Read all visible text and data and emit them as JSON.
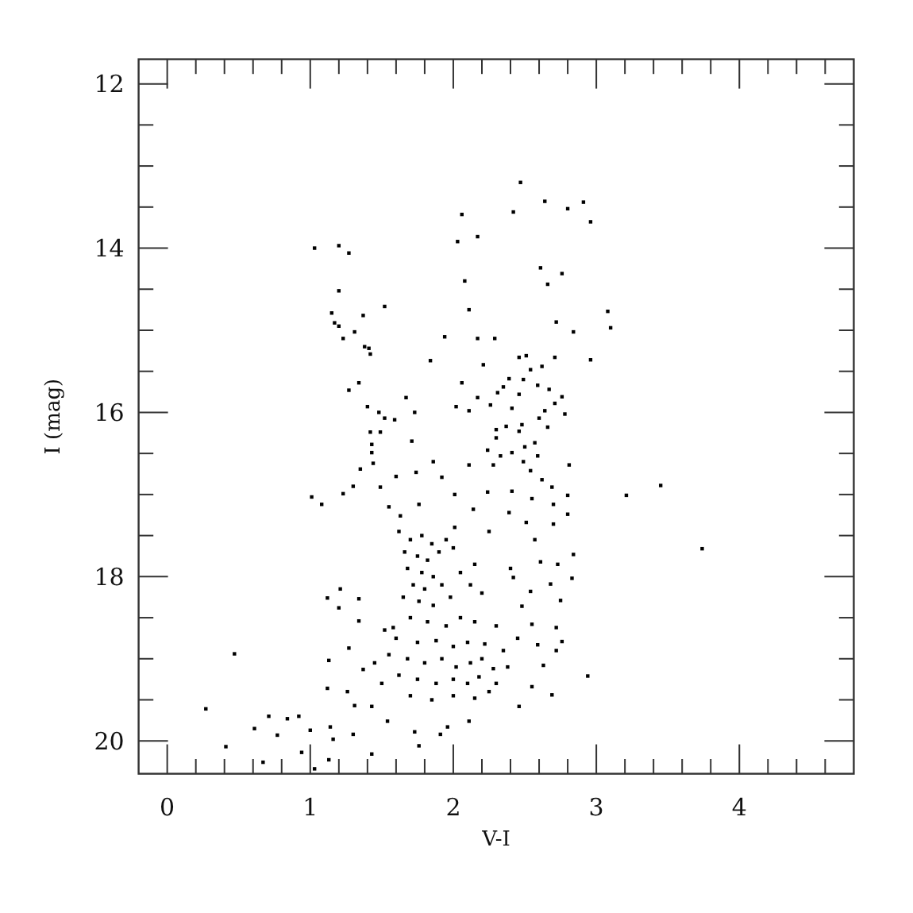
{
  "chart_data": {
    "type": "scatter",
    "xlabel": "V-I",
    "ylabel": "I (mag)",
    "x": [
      1.03,
      1.2,
      1.27,
      1.2,
      1.15,
      1.17,
      1.2,
      1.37,
      1.52,
      1.31,
      1.23,
      1.38,
      1.41,
      1.42,
      1.84,
      1.94,
      1.34,
      1.27,
      1.4,
      1.48,
      1.52,
      1.59,
      1.42,
      1.49,
      1.67,
      1.73,
      1.71,
      1.43,
      1.43,
      1.44,
      1.35,
      1.86,
      2.06,
      2.03,
      2.17,
      2.08,
      2.11,
      2.17,
      2.21,
      2.06,
      2.17,
      2.02,
      2.11,
      2.26,
      2.47,
      2.42,
      2.64,
      2.8,
      2.91,
      2.96,
      2.61,
      2.76,
      2.66,
      3.08,
      3.1,
      2.72,
      2.84,
      2.29,
      2.96,
      2.46,
      2.51,
      2.71,
      2.62,
      2.54,
      2.39,
      2.49,
      2.35,
      2.31,
      2.59,
      2.67,
      2.76,
      2.46,
      2.71,
      2.41,
      2.64,
      2.6,
      2.78,
      2.48,
      2.37,
      2.66,
      2.3,
      2.46,
      2.57,
      2.3,
      2.5,
      2.24,
      2.41,
      2.33,
      2.59,
      2.49,
      2.54,
      2.81,
      2.11,
      2.28,
      2.62,
      2.69,
      2.24,
      2.41,
      2.8,
      2.55,
      2.7,
      3.21,
      3.45,
      3.74,
      2.14,
      2.39,
      2.8,
      1.01,
      1.08,
      1.23,
      1.3,
      1.49,
      1.55,
      1.63,
      1.76,
      1.6,
      1.74,
      1.92,
      2.01,
      2.7,
      2.51,
      2.25,
      2.01,
      2.84,
      2.83,
      2.73,
      2.68,
      2.75,
      2.72,
      2.76,
      2.72,
      2.94,
      2.63,
      2.69,
      2.46,
      2.55,
      2.61,
      2.57,
      2.4,
      2.42,
      2.54,
      2.48,
      2.55,
      2.59,
      1.12,
      1.2,
      1.21,
      1.34,
      0.47,
      0.27,
      0.41,
      0.61,
      0.71,
      0.84,
      0.92,
      0.77,
      0.67,
      0.94,
      1.0,
      1.03,
      1.14,
      1.16,
      1.13,
      1.3,
      1.43,
      1.76,
      1.13,
      1.12,
      1.27,
      1.26,
      1.37,
      1.31,
      1.43,
      1.54,
      1.73,
      1.91,
      2.11,
      1.96,
      1.34,
      1.52,
      1.62,
      1.7,
      1.78,
      1.85,
      1.66,
      1.75,
      1.82,
      1.9,
      1.68,
      1.78,
      1.86,
      1.72,
      1.8,
      1.92,
      1.65,
      1.76,
      1.86,
      1.98,
      2.05,
      2.12,
      2.2,
      2.0,
      2.15,
      1.95,
      1.7,
      1.82,
      1.95,
      2.05,
      2.15,
      2.3,
      1.6,
      1.75,
      1.88,
      2.0,
      2.1,
      2.22,
      2.35,
      2.45,
      1.55,
      1.68,
      1.8,
      1.92,
      2.02,
      2.12,
      2.2,
      2.28,
      2.38,
      1.62,
      1.75,
      1.88,
      2.0,
      2.1,
      2.18,
      2.3,
      1.7,
      1.85,
      2.0,
      2.15,
      2.25,
      1.5,
      1.45,
      1.58
    ],
    "values": [
      14.0,
      13.97,
      14.06,
      14.52,
      14.79,
      14.91,
      14.95,
      14.82,
      14.71,
      15.02,
      15.1,
      15.2,
      15.22,
      15.29,
      15.37,
      15.08,
      15.64,
      15.73,
      15.93,
      16.0,
      16.07,
      16.09,
      16.24,
      16.24,
      15.82,
      16.0,
      16.35,
      16.39,
      16.49,
      16.62,
      16.69,
      16.6,
      13.59,
      13.92,
      13.86,
      14.4,
      14.75,
      15.1,
      15.42,
      15.64,
      15.82,
      15.93,
      15.98,
      15.91,
      13.2,
      13.56,
      13.43,
      13.52,
      13.44,
      13.68,
      14.24,
      14.31,
      14.44,
      14.77,
      14.97,
      14.9,
      15.02,
      15.1,
      15.36,
      15.33,
      15.31,
      15.33,
      15.44,
      15.48,
      15.59,
      15.6,
      15.69,
      15.76,
      15.67,
      15.72,
      15.81,
      15.78,
      15.89,
      15.95,
      15.98,
      16.07,
      16.02,
      16.15,
      16.17,
      16.18,
      16.21,
      16.23,
      16.37,
      16.31,
      16.42,
      16.46,
      16.49,
      16.53,
      16.53,
      16.6,
      16.71,
      16.64,
      16.64,
      16.64,
      16.82,
      16.91,
      16.97,
      16.96,
      17.01,
      17.05,
      17.12,
      17.01,
      16.89,
      17.66,
      17.18,
      17.22,
      17.24,
      17.03,
      17.12,
      16.99,
      16.9,
      16.91,
      17.15,
      17.26,
      17.12,
      16.78,
      16.73,
      16.79,
      17.0,
      17.36,
      17.34,
      17.45,
      17.4,
      17.73,
      18.02,
      17.85,
      18.09,
      18.29,
      18.62,
      18.79,
      18.9,
      19.21,
      19.08,
      19.44,
      19.58,
      19.34,
      17.82,
      17.55,
      17.9,
      18.01,
      18.18,
      18.36,
      18.58,
      18.83,
      18.26,
      18.38,
      18.15,
      18.27,
      18.94,
      19.61,
      20.07,
      19.85,
      19.7,
      19.73,
      19.7,
      19.93,
      20.26,
      20.14,
      19.87,
      20.34,
      19.83,
      19.98,
      20.23,
      19.92,
      20.16,
      20.06,
      19.02,
      19.36,
      18.87,
      19.4,
      19.13,
      19.57,
      19.58,
      19.76,
      19.89,
      19.92,
      19.76,
      19.83,
      18.54,
      18.65,
      17.45,
      17.55,
      17.5,
      17.6,
      17.7,
      17.75,
      17.8,
      17.7,
      17.9,
      17.95,
      18.0,
      18.1,
      18.15,
      18.1,
      18.25,
      18.3,
      18.35,
      18.25,
      17.95,
      18.1,
      18.2,
      17.65,
      17.85,
      17.55,
      18.5,
      18.55,
      18.6,
      18.5,
      18.55,
      18.6,
      18.75,
      18.8,
      18.78,
      18.85,
      18.8,
      18.82,
      18.9,
      18.75,
      18.95,
      19.0,
      19.05,
      19.0,
      19.1,
      19.05,
      19.0,
      19.12,
      19.1,
      19.2,
      19.25,
      19.3,
      19.25,
      19.3,
      19.22,
      19.3,
      19.45,
      19.5,
      19.45,
      19.48,
      19.4,
      19.3,
      19.05,
      18.62
    ],
    "color": "#000000",
    "marker": "square",
    "xlim": [
      -0.2,
      4.8
    ],
    "ylim": [
      20.4,
      11.7
    ],
    "xticks": [
      0,
      {
        "value": 0.2,
        "label": null
      },
      {
        "value": 0.4,
        "label": null
      },
      {
        "value": 0.6,
        "label": null
      },
      {
        "value": 0.8,
        "label": null
      },
      1,
      {
        "value": 1.2,
        "label": null
      },
      {
        "value": 1.4,
        "label": null
      },
      {
        "value": 1.6,
        "label": null
      },
      {
        "value": 1.8,
        "label": null
      },
      2,
      {
        "value": 2.2,
        "label": null
      },
      {
        "value": 2.4,
        "label": null
      },
      {
        "value": 2.6,
        "label": null
      },
      {
        "value": 2.8,
        "label": null
      },
      3,
      {
        "value": 3.2,
        "label": null
      },
      {
        "value": 3.4,
        "label": null
      },
      {
        "value": 3.6,
        "label": null
      },
      {
        "value": 3.8,
        "label": null
      },
      4,
      {
        "value": 4.2,
        "label": null
      },
      {
        "value": 4.4,
        "label": null
      },
      {
        "value": 4.6,
        "label": null
      }
    ],
    "yticks": [
      12,
      {
        "value": 12.5,
        "label": null
      },
      {
        "value": 13,
        "label": null
      },
      {
        "value": 13.5,
        "label": null
      },
      14,
      {
        "value": 14.5,
        "label": null
      },
      {
        "value": 15,
        "label": null
      },
      {
        "value": 15.5,
        "label": null
      },
      16,
      {
        "value": 16.5,
        "label": null
      },
      {
        "value": 17,
        "label": null
      },
      {
        "value": 17.5,
        "label": null
      },
      18,
      {
        "value": 18.5,
        "label": null
      },
      {
        "value": 19,
        "label": null
      },
      {
        "value": 19.5,
        "label": null
      },
      20
    ]
  }
}
